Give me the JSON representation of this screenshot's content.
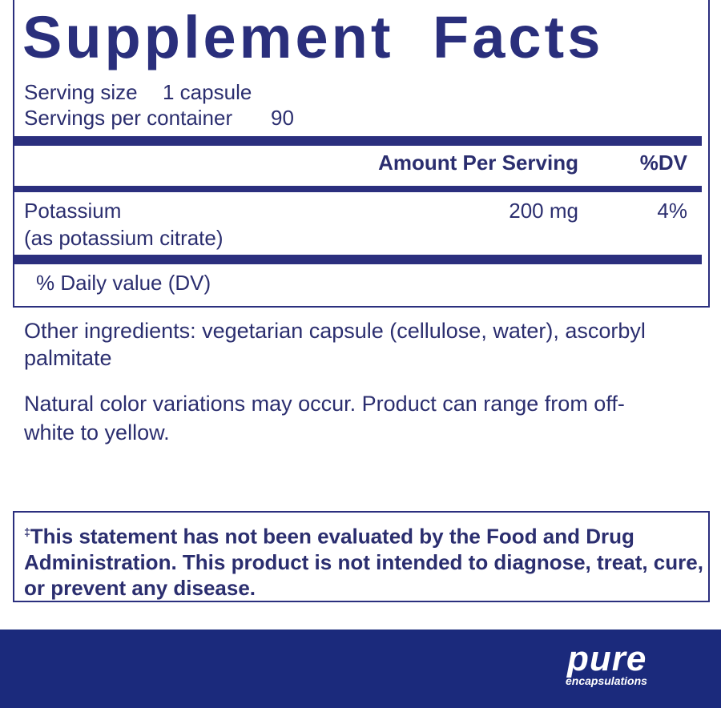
{
  "title": "Supplement Facts",
  "serving": {
    "size_label": "Serving size",
    "size_value": "1 capsule",
    "servings_label": "Servings per container",
    "servings_value": "90"
  },
  "table": {
    "header": [
      "Amount Per Serving",
      "%DV"
    ],
    "rows": [
      {
        "name": "Potassium",
        "detail": "(as potassium citrate)",
        "amount": "200 mg",
        "dv": "4%"
      }
    ],
    "footnote": "% Daily value (DV)"
  },
  "other_ingredients": "Other ingredients: vegetarian capsule (cellulose, water), ascorbyl palmitate",
  "note": "Natural color variations may occur. Product can range from off-white to yellow.",
  "disclaimer": {
    "mark": "‡",
    "text": "This statement has not been evaluated by the Food and Drug Administration. This product is not intended to diagnose, treat, cure, or prevent any disease."
  },
  "brand": {
    "name": "pure",
    "sub": "encapsulations"
  }
}
